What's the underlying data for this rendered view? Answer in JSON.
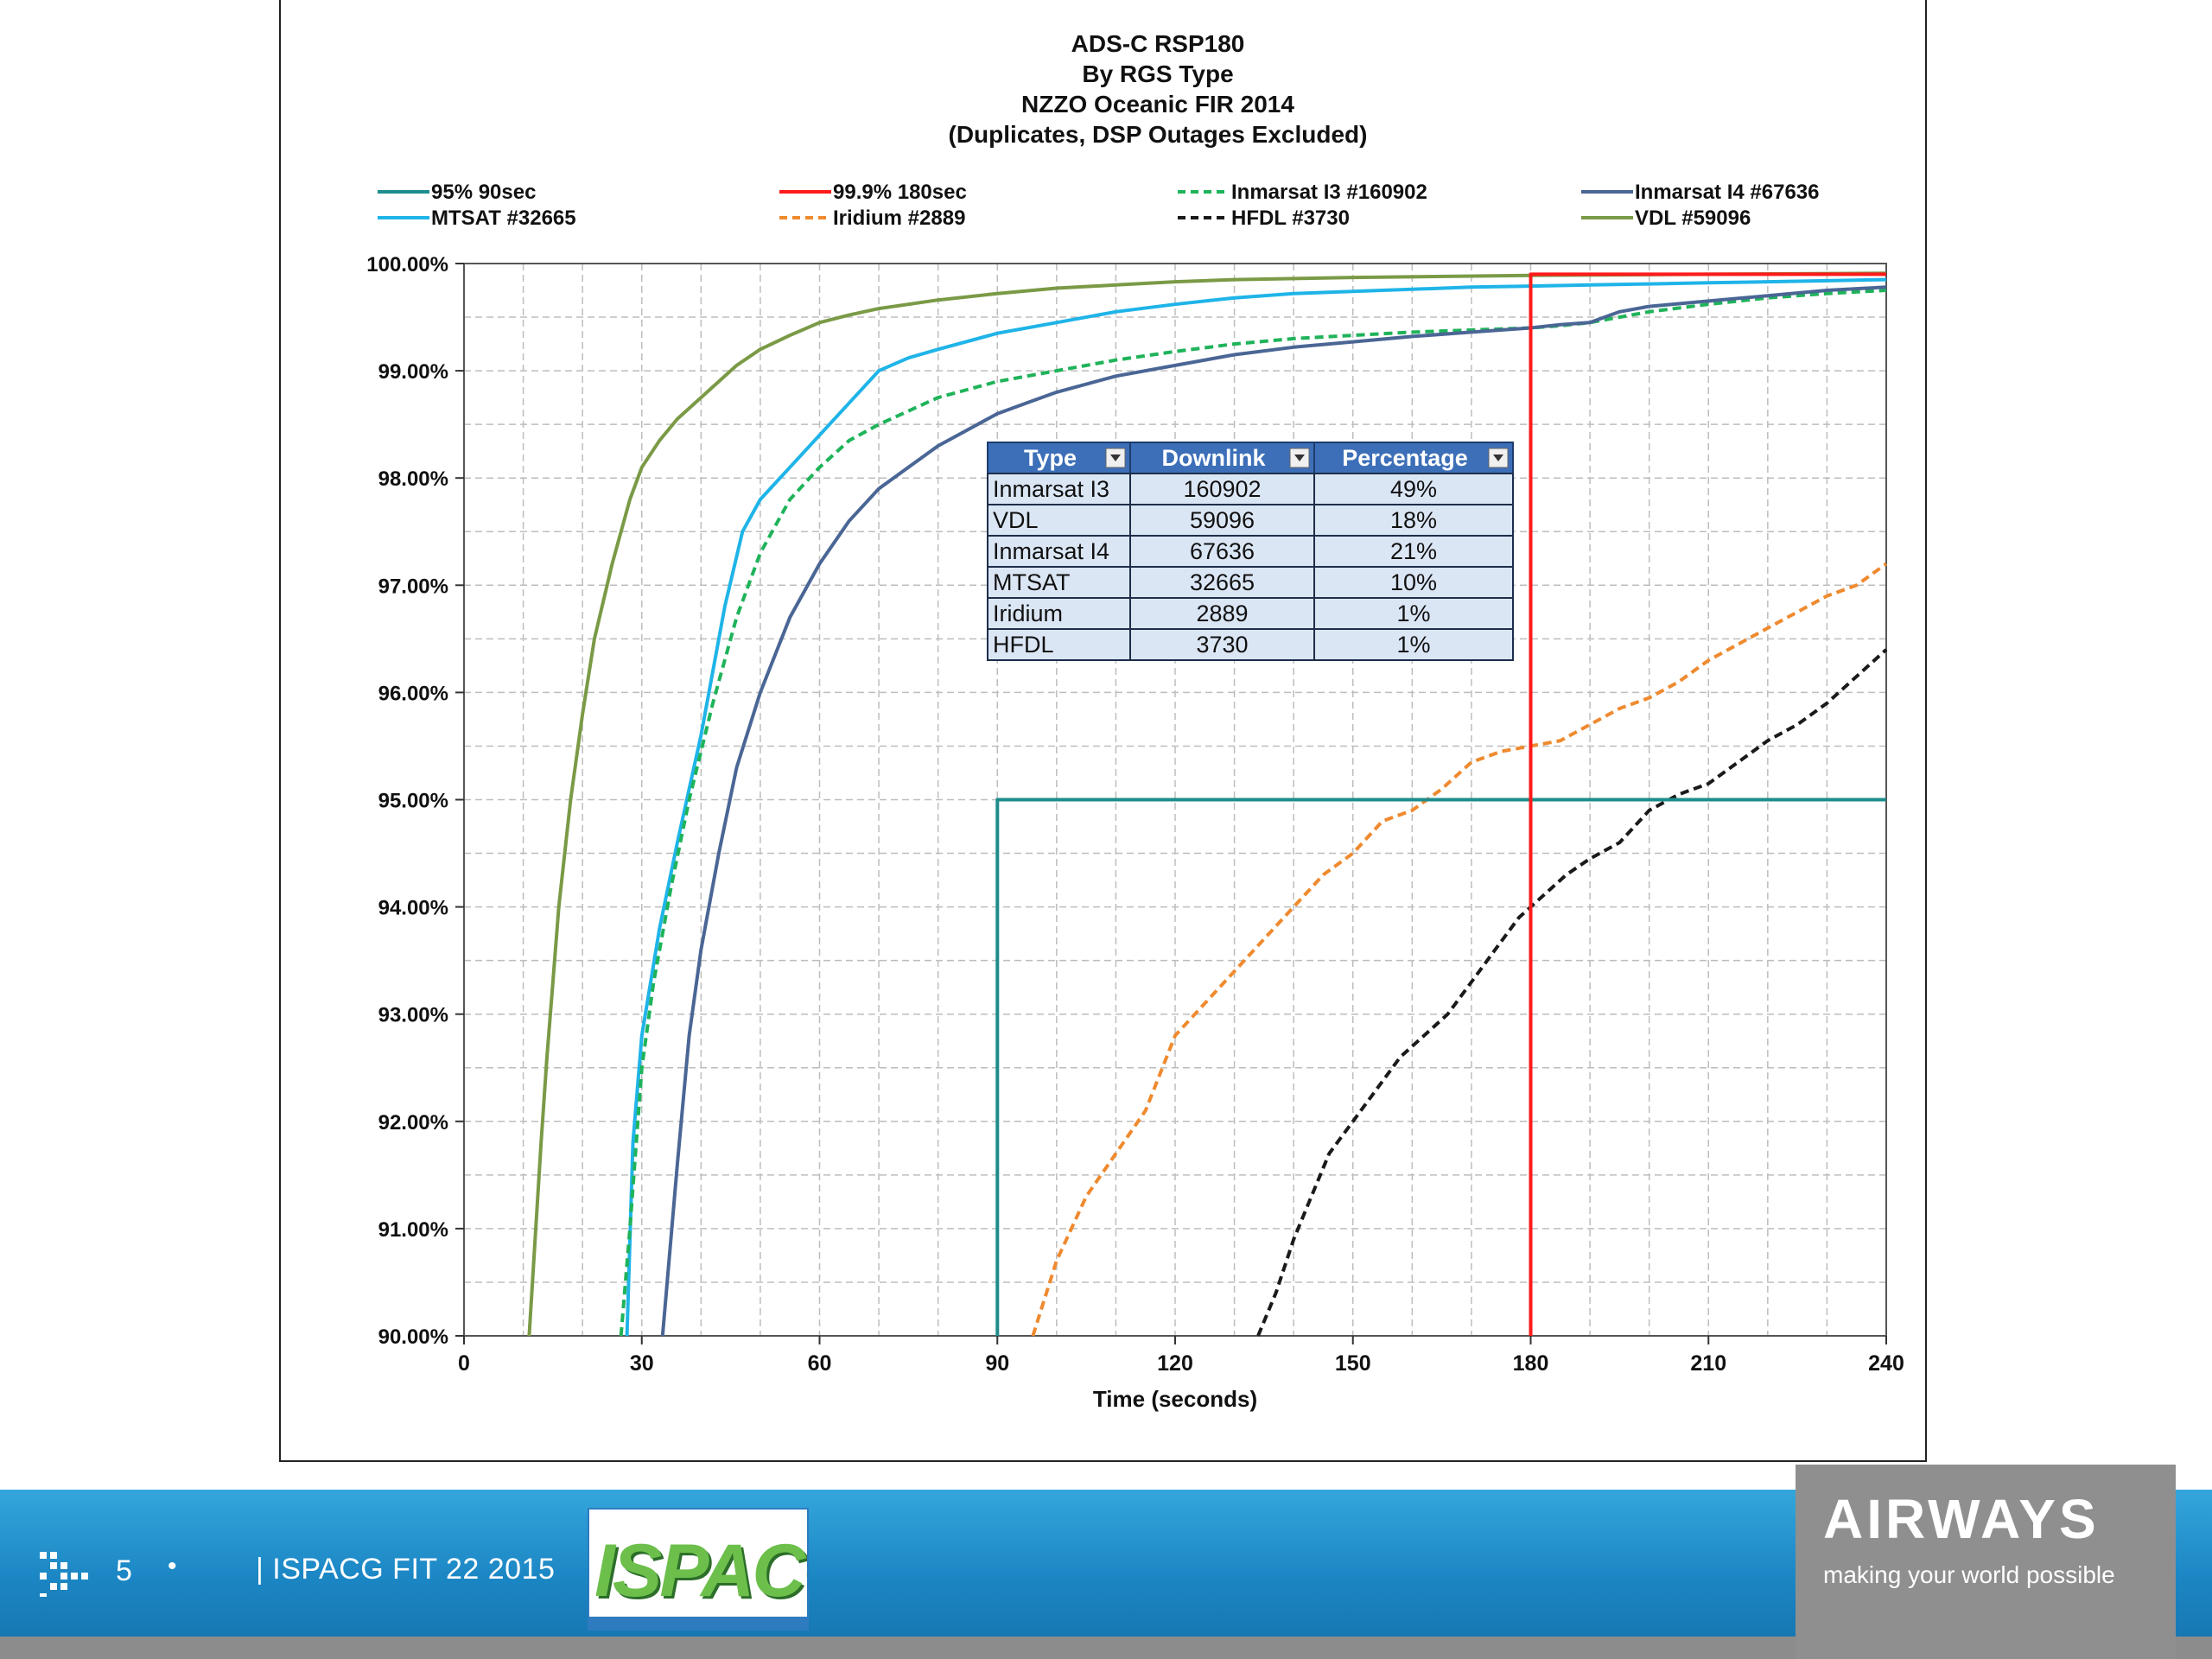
{
  "chart_data": {
    "type": "line",
    "title": [
      "ADS-C  RSP180",
      "By RGS Type",
      "NZZO  Oceanic FIR  2014",
      "(Duplicates, DSP Outages Excluded)"
    ],
    "xlabel": "Time (seconds)",
    "ylabel": "",
    "xlim": [
      0,
      240
    ],
    "ylim": [
      90,
      100
    ],
    "x_ticks": [
      "0",
      "30",
      "60",
      "90",
      "120",
      "150",
      "180",
      "210",
      "240"
    ],
    "y_ticks": [
      "90.00%",
      "91.00%",
      "92.00%",
      "93.00%",
      "94.00%",
      "95.00%",
      "96.00%",
      "97.00%",
      "98.00%",
      "99.00%",
      "100.00%"
    ],
    "grid": true,
    "legend_position": "top",
    "series": [
      {
        "name": "95%  90sec",
        "color": "#1f8c8c",
        "dash": false,
        "x": [
          90,
          90,
          240
        ],
        "y": [
          90,
          95,
          95
        ]
      },
      {
        "name": "99.9%  180sec",
        "color": "#ff1a1a",
        "dash": false,
        "x": [
          180,
          180,
          240
        ],
        "y": [
          90,
          99.9,
          99.9
        ]
      },
      {
        "name": "Inmarsat I3 #160902",
        "color": "#1fb35a",
        "dash": true,
        "x": [
          26.5,
          28,
          30,
          32,
          35,
          38,
          42,
          46,
          50,
          55,
          60,
          65,
          70,
          80,
          90,
          100,
          110,
          120,
          130,
          140,
          150,
          160,
          170,
          180,
          185,
          190,
          200,
          210,
          220,
          230,
          240
        ],
        "y": [
          90,
          91,
          92.5,
          93.3,
          94.2,
          95,
          95.9,
          96.7,
          97.3,
          97.8,
          98.1,
          98.35,
          98.5,
          98.75,
          98.9,
          99.0,
          99.1,
          99.18,
          99.25,
          99.3,
          99.33,
          99.36,
          99.38,
          99.4,
          99.42,
          99.45,
          99.55,
          99.62,
          99.68,
          99.72,
          99.75
        ]
      },
      {
        "name": "Inmarsat I4 #67636",
        "color": "#4a6695",
        "dash": false,
        "x": [
          33.5,
          36,
          38,
          40,
          43,
          46,
          50,
          55,
          60,
          65,
          70,
          75,
          80,
          85,
          90,
          95,
          100,
          110,
          120,
          130,
          140,
          150,
          160,
          170,
          180,
          185,
          190,
          195,
          200,
          210,
          220,
          230,
          240
        ],
        "y": [
          90,
          91.6,
          92.8,
          93.6,
          94.5,
          95.3,
          96,
          96.7,
          97.2,
          97.6,
          97.9,
          98.1,
          98.3,
          98.45,
          98.6,
          98.7,
          98.8,
          98.95,
          99.05,
          99.15,
          99.22,
          99.27,
          99.32,
          99.36,
          99.4,
          99.43,
          99.45,
          99.55,
          99.6,
          99.65,
          99.7,
          99.75,
          99.78
        ]
      },
      {
        "name": "MTSAT #32665",
        "color": "#1fb4e8",
        "dash": false,
        "x": [
          27.5,
          28.5,
          30,
          33,
          36,
          40,
          44,
          47,
          50,
          55,
          60,
          65,
          70,
          75,
          80,
          90,
          100,
          110,
          120,
          130,
          140,
          150,
          160,
          170,
          180,
          190,
          200,
          210,
          220,
          230,
          240
        ],
        "y": [
          90,
          91.8,
          92.8,
          93.8,
          94.6,
          95.6,
          96.8,
          97.5,
          97.8,
          98.1,
          98.4,
          98.7,
          99.0,
          99.12,
          99.2,
          99.35,
          99.45,
          99.55,
          99.62,
          99.68,
          99.72,
          99.74,
          99.76,
          99.78,
          99.79,
          99.8,
          99.81,
          99.82,
          99.83,
          99.84,
          99.85
        ]
      },
      {
        "name": "Iridium #2889",
        "color": "#ef8a2f",
        "dash": true,
        "x": [
          96,
          100,
          105,
          110,
          115,
          120,
          125,
          130,
          135,
          140,
          145,
          150,
          155,
          160,
          165,
          170,
          175,
          180,
          185,
          190,
          195,
          200,
          205,
          210,
          215,
          220,
          225,
          230,
          235,
          240
        ],
        "y": [
          90,
          90.7,
          91.3,
          91.7,
          92.1,
          92.8,
          93.1,
          93.4,
          93.7,
          94,
          94.3,
          94.5,
          94.8,
          94.9,
          95.1,
          95.35,
          95.45,
          95.5,
          95.55,
          95.7,
          95.85,
          95.95,
          96.1,
          96.3,
          96.45,
          96.6,
          96.75,
          96.9,
          97.0,
          97.2
        ]
      },
      {
        "name": "HFDL #3730",
        "color": "#1a1a1a",
        "dash": true,
        "x": [
          134,
          137,
          140,
          143,
          146,
          150,
          154,
          158,
          162,
          166,
          170,
          174,
          178,
          182,
          186,
          190,
          195,
          200,
          205,
          210,
          215,
          220,
          225,
          230,
          235,
          240
        ],
        "y": [
          90,
          90.4,
          90.9,
          91.3,
          91.7,
          92,
          92.3,
          92.6,
          92.8,
          93,
          93.3,
          93.6,
          93.9,
          94.1,
          94.3,
          94.45,
          94.6,
          94.9,
          95.05,
          95.15,
          95.35,
          95.55,
          95.7,
          95.9,
          96.15,
          96.4
        ]
      },
      {
        "name": "VDL #59096",
        "color": "#7a9a46",
        "dash": false,
        "x": [
          11,
          12,
          13,
          14,
          15,
          16,
          18,
          20,
          22,
          25,
          28,
          30,
          33,
          36,
          40,
          43,
          46,
          50,
          55,
          60,
          65,
          70,
          80,
          90,
          100,
          110,
          120,
          130,
          150,
          180,
          210,
          240
        ],
        "y": [
          90,
          90.9,
          91.8,
          92.6,
          93.3,
          94,
          95,
          95.8,
          96.5,
          97.2,
          97.8,
          98.1,
          98.35,
          98.55,
          98.75,
          98.9,
          99.05,
          99.2,
          99.33,
          99.45,
          99.52,
          99.58,
          99.66,
          99.72,
          99.77,
          99.8,
          99.83,
          99.85,
          99.87,
          99.89,
          99.9,
          99.91
        ]
      }
    ],
    "table": {
      "headers": [
        "Type",
        "Downlink",
        "Percentage"
      ],
      "rows": [
        [
          "Inmarsat I3",
          "160902",
          "49%"
        ],
        [
          "VDL",
          "59096",
          "18%"
        ],
        [
          "Inmarsat I4",
          "67636",
          "21%"
        ],
        [
          "MTSAT",
          "32665",
          "10%"
        ],
        [
          "Iridium",
          "2889",
          "1%"
        ],
        [
          "HFDL",
          "3730",
          "1%"
        ]
      ]
    }
  },
  "footer": {
    "slide_number": "5",
    "bullet": "•",
    "caption": "| ISPACG FIT 22 2015",
    "ispacg_logo_text": "ISPACG",
    "brand_name": "AIRWAYS",
    "brand_tagline": "making your world possible"
  },
  "colors": {
    "footer_blue": "#1b86c4",
    "brand_grey": "#8f8f8f",
    "table_header": "#3d6fb8",
    "table_cell": "#dbe6f5"
  }
}
